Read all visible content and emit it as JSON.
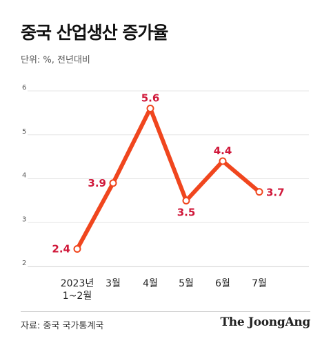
{
  "title": "중국 산업생산 증가율",
  "unit_label": "단위: %, 전년대비",
  "source": "자료: 중국 국가통계국",
  "brand": "The JoongAng",
  "colors": {
    "line": "#f0461e",
    "label": "#d0183a",
    "grid": "#e6e6e6",
    "axis_text": "#555555"
  },
  "chart_data": {
    "type": "line",
    "title": "중국 산업생산 증가율",
    "xlabel": "",
    "ylabel": "",
    "categories": [
      "2023년 1~2월",
      "3월",
      "4월",
      "5월",
      "6월",
      "7월"
    ],
    "category_lines": [
      [
        "2023년",
        "1~2월"
      ],
      [
        "3월"
      ],
      [
        "4월"
      ],
      [
        "5월"
      ],
      [
        "6월"
      ],
      [
        "7월"
      ]
    ],
    "series": [
      {
        "values": [
          2.4,
          3.9,
          5.6,
          3.5,
          4.4,
          3.7
        ]
      }
    ],
    "ylim": [
      2,
      6
    ],
    "yticks": [
      2,
      3,
      4,
      5,
      6
    ],
    "grid": true
  }
}
